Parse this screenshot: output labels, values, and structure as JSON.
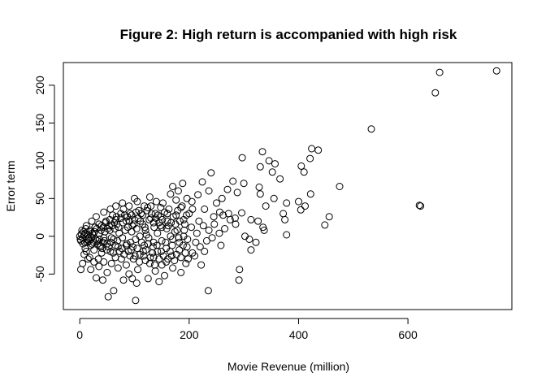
{
  "chart_data": {
    "type": "scatter",
    "title": "Figure 2: High return is accompanied with high risk",
    "xlabel": "Movie Revenue (million)",
    "ylabel": "Error term",
    "xlim": [
      -30,
      790
    ],
    "ylim": [
      -97,
      230
    ],
    "xticks": [
      0,
      200,
      400,
      600
    ],
    "yticks": [
      -50,
      0,
      50,
      100,
      150,
      200
    ],
    "grid": false,
    "legend": "none",
    "marker": "open-circle",
    "points": [
      [
        762,
        219
      ],
      [
        658,
        217
      ],
      [
        650,
        190
      ],
      [
        533,
        142
      ],
      [
        621,
        41
      ],
      [
        623,
        40
      ],
      [
        424,
        116
      ],
      [
        436,
        114
      ],
      [
        405,
        93
      ],
      [
        421,
        103
      ],
      [
        410,
        85
      ],
      [
        475,
        66
      ],
      [
        422,
        56
      ],
      [
        400,
        46
      ],
      [
        412,
        40
      ],
      [
        404,
        35
      ],
      [
        456,
        26
      ],
      [
        448,
        15
      ],
      [
        334,
        112
      ],
      [
        297,
        104
      ],
      [
        357,
        96
      ],
      [
        346,
        100
      ],
      [
        330,
        92
      ],
      [
        328,
        65
      ],
      [
        352,
        85
      ],
      [
        366,
        76
      ],
      [
        330,
        56
      ],
      [
        355,
        50
      ],
      [
        340,
        40
      ],
      [
        378,
        44
      ],
      [
        372,
        30
      ],
      [
        375,
        22
      ],
      [
        326,
        20
      ],
      [
        313,
        22
      ],
      [
        335,
        12
      ],
      [
        337,
        8
      ],
      [
        378,
        2
      ],
      [
        302,
        0
      ],
      [
        310,
        -4
      ],
      [
        322,
        -8
      ],
      [
        313,
        -18
      ],
      [
        292,
        -44
      ],
      [
        291,
        -58
      ],
      [
        235,
        -72
      ],
      [
        280,
        73
      ],
      [
        300,
        70
      ],
      [
        288,
        58
      ],
      [
        296,
        31
      ],
      [
        270,
        62
      ],
      [
        260,
        50
      ],
      [
        250,
        44
      ],
      [
        262,
        28
      ],
      [
        275,
        22
      ],
      [
        285,
        16
      ],
      [
        265,
        10
      ],
      [
        255,
        4
      ],
      [
        242,
        -2
      ],
      [
        258,
        -12
      ],
      [
        228,
        -20
      ],
      [
        210,
        -26
      ],
      [
        222,
        -38
      ],
      [
        198,
        -30
      ],
      [
        212,
        -8
      ],
      [
        190,
        0
      ],
      [
        240,
        84
      ],
      [
        224,
        72
      ],
      [
        236,
        60
      ],
      [
        216,
        55
      ],
      [
        205,
        46
      ],
      [
        228,
        36
      ],
      [
        245,
        26
      ],
      [
        218,
        20
      ],
      [
        200,
        30
      ],
      [
        185,
        38
      ],
      [
        192,
        16
      ],
      [
        178,
        8
      ],
      [
        170,
        -4
      ],
      [
        182,
        -18
      ],
      [
        168,
        -26
      ],
      [
        158,
        -34
      ],
      [
        150,
        -38
      ],
      [
        185,
        -48
      ],
      [
        170,
        -42
      ],
      [
        155,
        -52
      ],
      [
        145,
        -60
      ],
      [
        125,
        -56
      ],
      [
        104,
        -62
      ],
      [
        102,
        -85
      ],
      [
        52,
        -80
      ],
      [
        62,
        -72
      ],
      [
        42,
        -58
      ],
      [
        30,
        -55
      ],
      [
        35,
        -40
      ],
      [
        20,
        -44
      ],
      [
        50,
        -48
      ],
      [
        70,
        -42
      ],
      [
        85,
        -38
      ],
      [
        90,
        -50
      ],
      [
        120,
        -32
      ],
      [
        135,
        -28
      ],
      [
        110,
        -24
      ],
      [
        98,
        -30
      ],
      [
        65,
        -28
      ],
      [
        40,
        -22
      ],
      [
        15,
        -30
      ],
      [
        5,
        -36
      ],
      [
        2,
        -44
      ],
      [
        8,
        -24
      ],
      [
        160,
        20
      ],
      [
        150,
        12
      ],
      [
        142,
        4
      ],
      [
        130,
        24
      ],
      [
        120,
        8
      ],
      [
        138,
        30
      ],
      [
        148,
        38
      ],
      [
        140,
        46
      ],
      [
        128,
        52
      ],
      [
        118,
        40
      ],
      [
        105,
        46
      ],
      [
        112,
        30
      ],
      [
        100,
        22
      ],
      [
        92,
        30
      ],
      [
        88,
        12
      ],
      [
        80,
        36
      ],
      [
        75,
        24
      ],
      [
        68,
        16
      ],
      [
        60,
        28
      ],
      [
        55,
        8
      ],
      [
        48,
        20
      ],
      [
        40,
        14
      ],
      [
        35,
        4
      ],
      [
        28,
        12
      ],
      [
        22,
        20
      ],
      [
        18,
        6
      ],
      [
        12,
        14
      ],
      [
        8,
        2
      ],
      [
        4,
        8
      ],
      [
        2,
        -6
      ],
      [
        6,
        -10
      ],
      [
        10,
        -16
      ],
      [
        14,
        -8
      ],
      [
        20,
        -12
      ],
      [
        26,
        -18
      ],
      [
        32,
        -6
      ],
      [
        38,
        -14
      ],
      [
        44,
        -2
      ],
      [
        50,
        -10
      ],
      [
        56,
        -20
      ],
      [
        62,
        -4
      ],
      [
        70,
        -14
      ],
      [
        78,
        -2
      ],
      [
        86,
        -10
      ],
      [
        94,
        -18
      ],
      [
        102,
        -4
      ],
      [
        110,
        0
      ],
      [
        118,
        -12
      ],
      [
        126,
        -2
      ],
      [
        134,
        -14
      ],
      [
        142,
        -20
      ],
      [
        150,
        -6
      ],
      [
        158,
        -16
      ],
      [
        166,
        0
      ],
      [
        174,
        6
      ],
      [
        182,
        -8
      ],
      [
        190,
        22
      ],
      [
        196,
        -14
      ],
      [
        160,
        30
      ],
      [
        145,
        18
      ],
      [
        135,
        -8
      ],
      [
        115,
        16
      ],
      [
        95,
        6
      ],
      [
        85,
        20
      ],
      [
        72,
        4
      ],
      [
        64,
        10
      ],
      [
        58,
        -2
      ],
      [
        46,
        6
      ],
      [
        36,
        -4
      ],
      [
        24,
        2
      ],
      [
        16,
        -2
      ],
      [
        10,
        4
      ],
      [
        30,
        26
      ],
      [
        44,
        32
      ],
      [
        56,
        36
      ],
      [
        66,
        40
      ],
      [
        78,
        44
      ],
      [
        90,
        40
      ],
      [
        100,
        50
      ],
      [
        108,
        34
      ],
      [
        124,
        38
      ],
      [
        176,
        48
      ],
      [
        196,
        50
      ],
      [
        206,
        36
      ],
      [
        166,
        56
      ],
      [
        180,
        60
      ],
      [
        188,
        70
      ],
      [
        170,
        66
      ],
      [
        152,
        44
      ],
      [
        130,
        40
      ],
      [
        12,
        -20
      ],
      [
        18,
        -28
      ],
      [
        26,
        -34
      ],
      [
        34,
        -30
      ],
      [
        44,
        -34
      ],
      [
        58,
        -36
      ],
      [
        76,
        -30
      ],
      [
        92,
        -26
      ],
      [
        106,
        -44
      ],
      [
        116,
        -20
      ],
      [
        128,
        -36
      ],
      [
        138,
        -46
      ],
      [
        96,
        -56
      ],
      [
        80,
        -58
      ],
      [
        22,
        -10
      ],
      [
        42,
        -8
      ],
      [
        54,
        14
      ],
      [
        66,
        22
      ],
      [
        82,
        28
      ],
      [
        96,
        14
      ],
      [
        104,
        10
      ],
      [
        122,
        2
      ],
      [
        136,
        12
      ],
      [
        148,
        26
      ],
      [
        162,
        14
      ],
      [
        176,
        28
      ],
      [
        204,
        12
      ],
      [
        214,
        4
      ],
      [
        226,
        14
      ],
      [
        236,
        8
      ],
      [
        246,
        16
      ],
      [
        256,
        32
      ],
      [
        272,
        30
      ],
      [
        284,
        24
      ],
      [
        232,
        -6
      ],
      [
        220,
        -14
      ],
      [
        206,
        -22
      ],
      [
        194,
        -36
      ],
      [
        0,
        0
      ],
      [
        1,
        -4
      ],
      [
        3,
        3
      ],
      [
        5,
        -2
      ],
      [
        7,
        6
      ],
      [
        9,
        -8
      ],
      [
        11,
        10
      ],
      [
        13,
        -4
      ],
      [
        15,
        2
      ],
      [
        17,
        -6
      ],
      [
        19,
        8
      ],
      [
        21,
        -2
      ],
      [
        23,
        4
      ],
      [
        25,
        -8
      ],
      [
        27,
        6
      ],
      [
        29,
        -4
      ],
      [
        31,
        10
      ],
      [
        33,
        -10
      ],
      [
        35,
        16
      ],
      [
        37,
        -12
      ],
      [
        39,
        8
      ],
      [
        41,
        -16
      ],
      [
        43,
        12
      ],
      [
        45,
        -6
      ],
      [
        47,
        18
      ],
      [
        49,
        -18
      ],
      [
        51,
        10
      ],
      [
        53,
        -14
      ],
      [
        55,
        22
      ],
      [
        57,
        -8
      ],
      [
        59,
        14
      ],
      [
        61,
        -22
      ],
      [
        63,
        18
      ],
      [
        65,
        -12
      ],
      [
        67,
        26
      ],
      [
        69,
        -6
      ],
      [
        71,
        12
      ],
      [
        73,
        -20
      ],
      [
        75,
        30
      ],
      [
        77,
        -16
      ],
      [
        79,
        18
      ],
      [
        81,
        -24
      ],
      [
        83,
        8
      ],
      [
        85,
        -12
      ],
      [
        87,
        26
      ],
      [
        89,
        -20
      ],
      [
        91,
        20
      ],
      [
        93,
        -8
      ],
      [
        95,
        28
      ],
      [
        97,
        -14
      ],
      [
        99,
        16
      ],
      [
        101,
        -26
      ],
      [
        103,
        32
      ],
      [
        105,
        -16
      ],
      [
        107,
        24
      ],
      [
        109,
        -34
      ],
      [
        111,
        20
      ],
      [
        113,
        -8
      ],
      [
        115,
        28
      ],
      [
        117,
        -26
      ],
      [
        119,
        12
      ],
      [
        121,
        -18
      ],
      [
        123,
        34
      ],
      [
        125,
        -10
      ],
      [
        127,
        22
      ],
      [
        129,
        -28
      ],
      [
        131,
        30
      ],
      [
        133,
        -22
      ],
      [
        135,
        18
      ],
      [
        137,
        -38
      ],
      [
        139,
        24
      ],
      [
        141,
        -12
      ],
      [
        143,
        28
      ],
      [
        145,
        -30
      ],
      [
        147,
        14
      ],
      [
        149,
        -20
      ],
      [
        151,
        22
      ],
      [
        153,
        -26
      ],
      [
        155,
        32
      ],
      [
        157,
        -8
      ],
      [
        159,
        10
      ],
      [
        161,
        -30
      ],
      [
        163,
        36
      ],
      [
        165,
        -20
      ],
      [
        167,
        18
      ],
      [
        169,
        -12
      ],
      [
        171,
        26
      ],
      [
        173,
        -32
      ],
      [
        175,
        16
      ],
      [
        177,
        -24
      ],
      [
        179,
        34
      ],
      [
        181,
        -2
      ],
      [
        183,
        20
      ],
      [
        185,
        -28
      ],
      [
        187,
        40
      ],
      [
        189,
        -12
      ],
      [
        191,
        8
      ],
      [
        193,
        -22
      ],
      [
        195,
        28
      ],
      [
        197,
        -4
      ]
    ]
  }
}
